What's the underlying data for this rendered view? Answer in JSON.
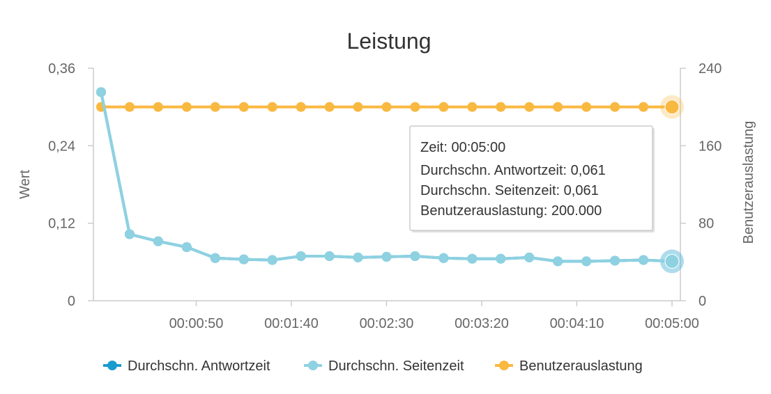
{
  "chart_data": {
    "type": "line",
    "title": "Leistung",
    "ylabel_left": "Wert",
    "ylabel_right": "Benutzerauslastung",
    "xlabel": "",
    "x_ticks": [
      "00:00:50",
      "00:01:40",
      "00:02:30",
      "00:03:20",
      "00:04:10",
      "00:05:00"
    ],
    "x_tick_seconds": [
      50,
      100,
      150,
      200,
      250,
      300
    ],
    "y_left_ticks": [
      "0",
      "0,12",
      "0,24",
      "0,36"
    ],
    "y_left_tick_values": [
      0,
      0.12,
      0.24,
      0.36
    ],
    "y_right_ticks": [
      "0",
      "80",
      "160",
      "240"
    ],
    "y_right_tick_values": [
      0,
      80,
      160,
      240
    ],
    "ylim_left": [
      0,
      0.36
    ],
    "ylim_right": [
      0,
      240
    ],
    "xlim_seconds": [
      0,
      300
    ],
    "x_seconds": [
      0,
      15,
      30,
      45,
      60,
      75,
      90,
      105,
      120,
      135,
      150,
      165,
      180,
      195,
      210,
      225,
      240,
      255,
      270,
      285,
      300
    ],
    "series": [
      {
        "name": "Durchschn. Antwortzeit",
        "axis": "left",
        "color": "#1a9bd0",
        "values": [
          0.323,
          0.103,
          0.092,
          0.083,
          0.066,
          0.064,
          0.063,
          0.069,
          0.069,
          0.067,
          0.068,
          0.069,
          0.066,
          0.065,
          0.065,
          0.067,
          0.061,
          0.061,
          0.062,
          0.063,
          0.061
        ]
      },
      {
        "name": "Durchschn. Seitenzeit",
        "axis": "left",
        "color": "#8ed1e1",
        "values": [
          0.323,
          0.103,
          0.092,
          0.083,
          0.066,
          0.064,
          0.063,
          0.069,
          0.069,
          0.067,
          0.068,
          0.069,
          0.066,
          0.065,
          0.065,
          0.067,
          0.061,
          0.061,
          0.062,
          0.063,
          0.061
        ]
      },
      {
        "name": "Benutzerauslastung",
        "axis": "right",
        "color": "#f9b840",
        "values": [
          200,
          200,
          200,
          200,
          200,
          200,
          200,
          200,
          200,
          200,
          200,
          200,
          200,
          200,
          200,
          200,
          200,
          200,
          200,
          200,
          200
        ]
      }
    ],
    "legend_position": "bottom",
    "grid": false,
    "tooltip": {
      "lines": [
        "Zeit: 00:05:00",
        "Durchschn. Antwortzeit: 0,061",
        "Durchschn. Seitenzeit: 0,061",
        "Benutzerauslastung: 200.000"
      ]
    }
  }
}
